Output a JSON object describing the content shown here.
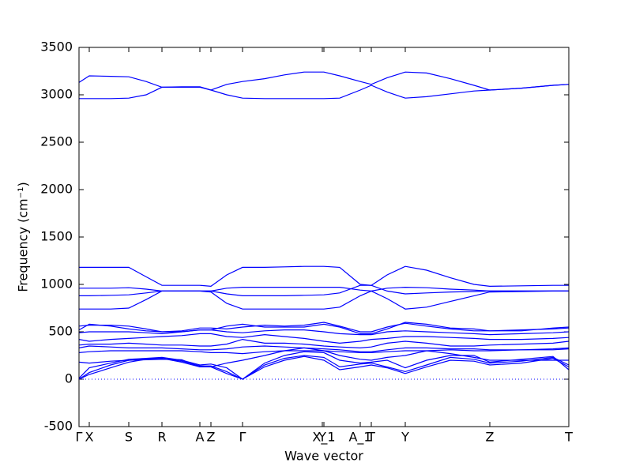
{
  "chart_data": {
    "type": "line",
    "xlabel": "Wave vector",
    "ylabel": "Frequency (cm⁻¹)",
    "xlim": [
      0,
      620
    ],
    "ylim": [
      -500,
      3500
    ],
    "yticks": [
      -500,
      0,
      500,
      1000,
      1500,
      2000,
      2500,
      3000,
      3500
    ],
    "xticks": [
      {
        "value": 0,
        "label": "Γ"
      },
      {
        "value": 13,
        "label": "X"
      },
      {
        "value": 63,
        "label": "S"
      },
      {
        "value": 105,
        "label": "R"
      },
      {
        "value": 153,
        "label": "A"
      },
      {
        "value": 167,
        "label": "Z"
      },
      {
        "value": 207,
        "label": "Γ"
      },
      {
        "value": 308,
        "label": "Y"
      },
      {
        "value": 310,
        "label": "X_1"
      },
      {
        "value": 356,
        "label": "A_1"
      },
      {
        "value": 370,
        "label": "T"
      },
      {
        "value": 413,
        "label": "Y"
      },
      {
        "value": 520,
        "label": "Z"
      },
      {
        "value": 620,
        "label": "T"
      }
    ],
    "reference_line": 0,
    "x": [
      0,
      13,
      40,
      63,
      85,
      105,
      130,
      153,
      167,
      187,
      207,
      235,
      260,
      285,
      310,
      330,
      356,
      370,
      390,
      413,
      440,
      470,
      500,
      520,
      560,
      600,
      620
    ],
    "series": [
      {
        "color": "#0000ff",
        "values": [
          3130,
          3200,
          3195,
          3190,
          3140,
          3080,
          3085,
          3085,
          3050,
          3110,
          3140,
          3170,
          3210,
          3240,
          3240,
          3200,
          3140,
          3110,
          3180,
          3240,
          3230,
          3170,
          3100,
          3050,
          3070,
          3100,
          3110
        ]
      },
      {
        "color": "#0000ff",
        "values": [
          2960,
          2960,
          2960,
          2965,
          3000,
          3080,
          3080,
          3080,
          3050,
          3000,
          2965,
          2960,
          2960,
          2960,
          2960,
          2965,
          3050,
          3100,
          3030,
          2965,
          2980,
          3010,
          3040,
          3050,
          3070,
          3100,
          3110
        ]
      },
      {
        "color": "#0000ff",
        "values": [
          1180,
          1180,
          1180,
          1180,
          1080,
          990,
          990,
          990,
          980,
          1100,
          1180,
          1180,
          1185,
          1190,
          1190,
          1180,
          1000,
          990,
          1100,
          1190,
          1150,
          1070,
          1000,
          980,
          985,
          990,
          990
        ]
      },
      {
        "color": "#0000ff",
        "values": [
          960,
          960,
          960,
          965,
          950,
          930,
          930,
          930,
          930,
          960,
          970,
          970,
          970,
          970,
          970,
          970,
          940,
          930,
          960,
          970,
          965,
          950,
          940,
          930,
          930,
          930,
          930
        ]
      },
      {
        "color": "#0000ff",
        "values": [
          880,
          880,
          885,
          890,
          910,
          930,
          930,
          930,
          930,
          900,
          880,
          880,
          880,
          885,
          890,
          910,
          990,
          990,
          930,
          900,
          910,
          920,
          925,
          930,
          930,
          930,
          930
        ]
      },
      {
        "color": "#0000ff",
        "values": [
          740,
          740,
          740,
          750,
          840,
          930,
          930,
          930,
          920,
          800,
          740,
          740,
          740,
          740,
          740,
          760,
          880,
          930,
          850,
          740,
          760,
          820,
          880,
          920,
          925,
          930,
          930
        ]
      },
      {
        "color": "#0000ff",
        "values": [
          0,
          50,
          120,
          180,
          210,
          220,
          180,
          130,
          130,
          60,
          0,
          130,
          200,
          240,
          200,
          100,
          130,
          150,
          120,
          60,
          130,
          200,
          190,
          150,
          170,
          220,
          130
        ]
      },
      {
        "color": "#0000ff",
        "values": [
          0,
          70,
          150,
          200,
          210,
          220,
          190,
          140,
          140,
          80,
          0,
          150,
          220,
          250,
          230,
          130,
          160,
          170,
          130,
          80,
          150,
          230,
          210,
          170,
          190,
          230,
          150
        ]
      },
      {
        "color": "#0000ff",
        "values": [
          10,
          120,
          170,
          210,
          220,
          230,
          200,
          150,
          160,
          120,
          0,
          170,
          250,
          290,
          280,
          200,
          170,
          180,
          200,
          120,
          200,
          250,
          250,
          180,
          210,
          240,
          100
        ]
      },
      {
        "color": "#0000ff",
        "values": [
          180,
          170,
          190,
          200,
          205,
          210,
          205,
          130,
          130,
          170,
          200,
          250,
          300,
          330,
          300,
          250,
          210,
          200,
          230,
          250,
          300,
          270,
          230,
          200,
          200,
          200,
          200
        ]
      },
      {
        "color": "#0000ff",
        "values": [
          280,
          290,
          300,
          300,
          300,
          300,
          300,
          290,
          280,
          280,
          270,
          290,
          300,
          300,
          300,
          290,
          280,
          280,
          290,
          300,
          300,
          310,
          300,
          300,
          310,
          310,
          320
        ]
      },
      {
        "color": "#0000ff",
        "values": [
          330,
          350,
          340,
          330,
          330,
          330,
          320,
          310,
          310,
          320,
          340,
          350,
          340,
          330,
          320,
          310,
          290,
          290,
          310,
          330,
          330,
          320,
          320,
          310,
          310,
          320,
          330
        ]
      },
      {
        "color": "#0000ff",
        "values": [
          360,
          370,
          370,
          380,
          370,
          360,
          360,
          350,
          350,
          370,
          420,
          380,
          380,
          370,
          350,
          340,
          330,
          340,
          380,
          400,
          380,
          350,
          350,
          360,
          370,
          380,
          400
        ]
      },
      {
        "color": "#0000ff",
        "values": [
          420,
          400,
          420,
          430,
          440,
          450,
          460,
          480,
          480,
          450,
          440,
          470,
          450,
          430,
          400,
          380,
          400,
          420,
          430,
          450,
          450,
          440,
          430,
          420,
          420,
          430,
          440
        ]
      },
      {
        "color": "#0000ff",
        "values": [
          490,
          500,
          500,
          500,
          490,
          480,
          500,
          520,
          520,
          500,
          490,
          510,
          520,
          520,
          500,
          480,
          470,
          470,
          500,
          510,
          500,
          490,
          480,
          470,
          480,
          490,
          500
        ]
      },
      {
        "color": "#0000ff",
        "values": [
          520,
          580,
          560,
          530,
          510,
          500,
          510,
          540,
          540,
          530,
          550,
          570,
          560,
          570,
          600,
          560,
          500,
          500,
          550,
          590,
          560,
          530,
          510,
          510,
          520,
          530,
          540
        ]
      },
      {
        "color": "#0000ff",
        "values": [
          560,
          570,
          570,
          560,
          530,
          500,
          500,
          520,
          520,
          560,
          580,
          550,
          550,
          550,
          580,
          550,
          480,
          480,
          530,
          600,
          580,
          540,
          530,
          510,
          510,
          540,
          550
        ]
      }
    ]
  }
}
